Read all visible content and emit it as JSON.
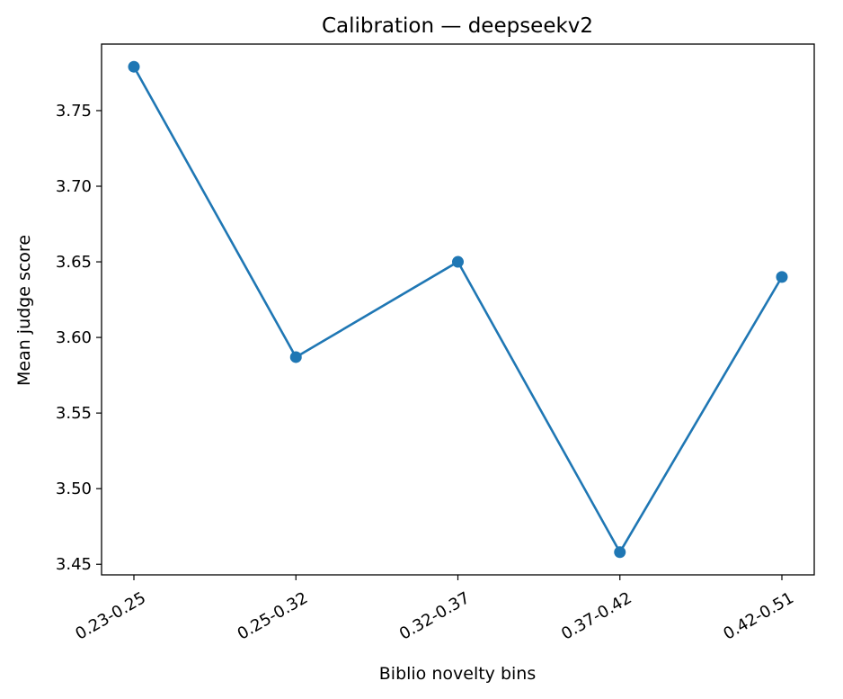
{
  "chart_data": {
    "type": "line",
    "title": "Calibration — deepseekv2",
    "xlabel": "Biblio novelty bins",
    "ylabel": "Mean judge score",
    "categories": [
      "0.23-0.25",
      "0.25-0.32",
      "0.32-0.37",
      "0.37-0.42",
      "0.42-0.51"
    ],
    "series": [
      {
        "values": [
          3.779,
          3.587,
          3.65,
          3.458,
          3.64
        ],
        "color": "#1f77b4",
        "marker": "circle"
      }
    ],
    "ylim": [
      3.443,
      3.794
    ],
    "yticks": [
      3.45,
      3.5,
      3.55,
      3.6,
      3.65,
      3.7,
      3.75
    ],
    "ytick_labels": [
      "3.45",
      "3.50",
      "3.55",
      "3.60",
      "3.65",
      "3.70",
      "3.75"
    ],
    "xtick_rotation_deg": 30,
    "grid": false,
    "legend": "none"
  }
}
